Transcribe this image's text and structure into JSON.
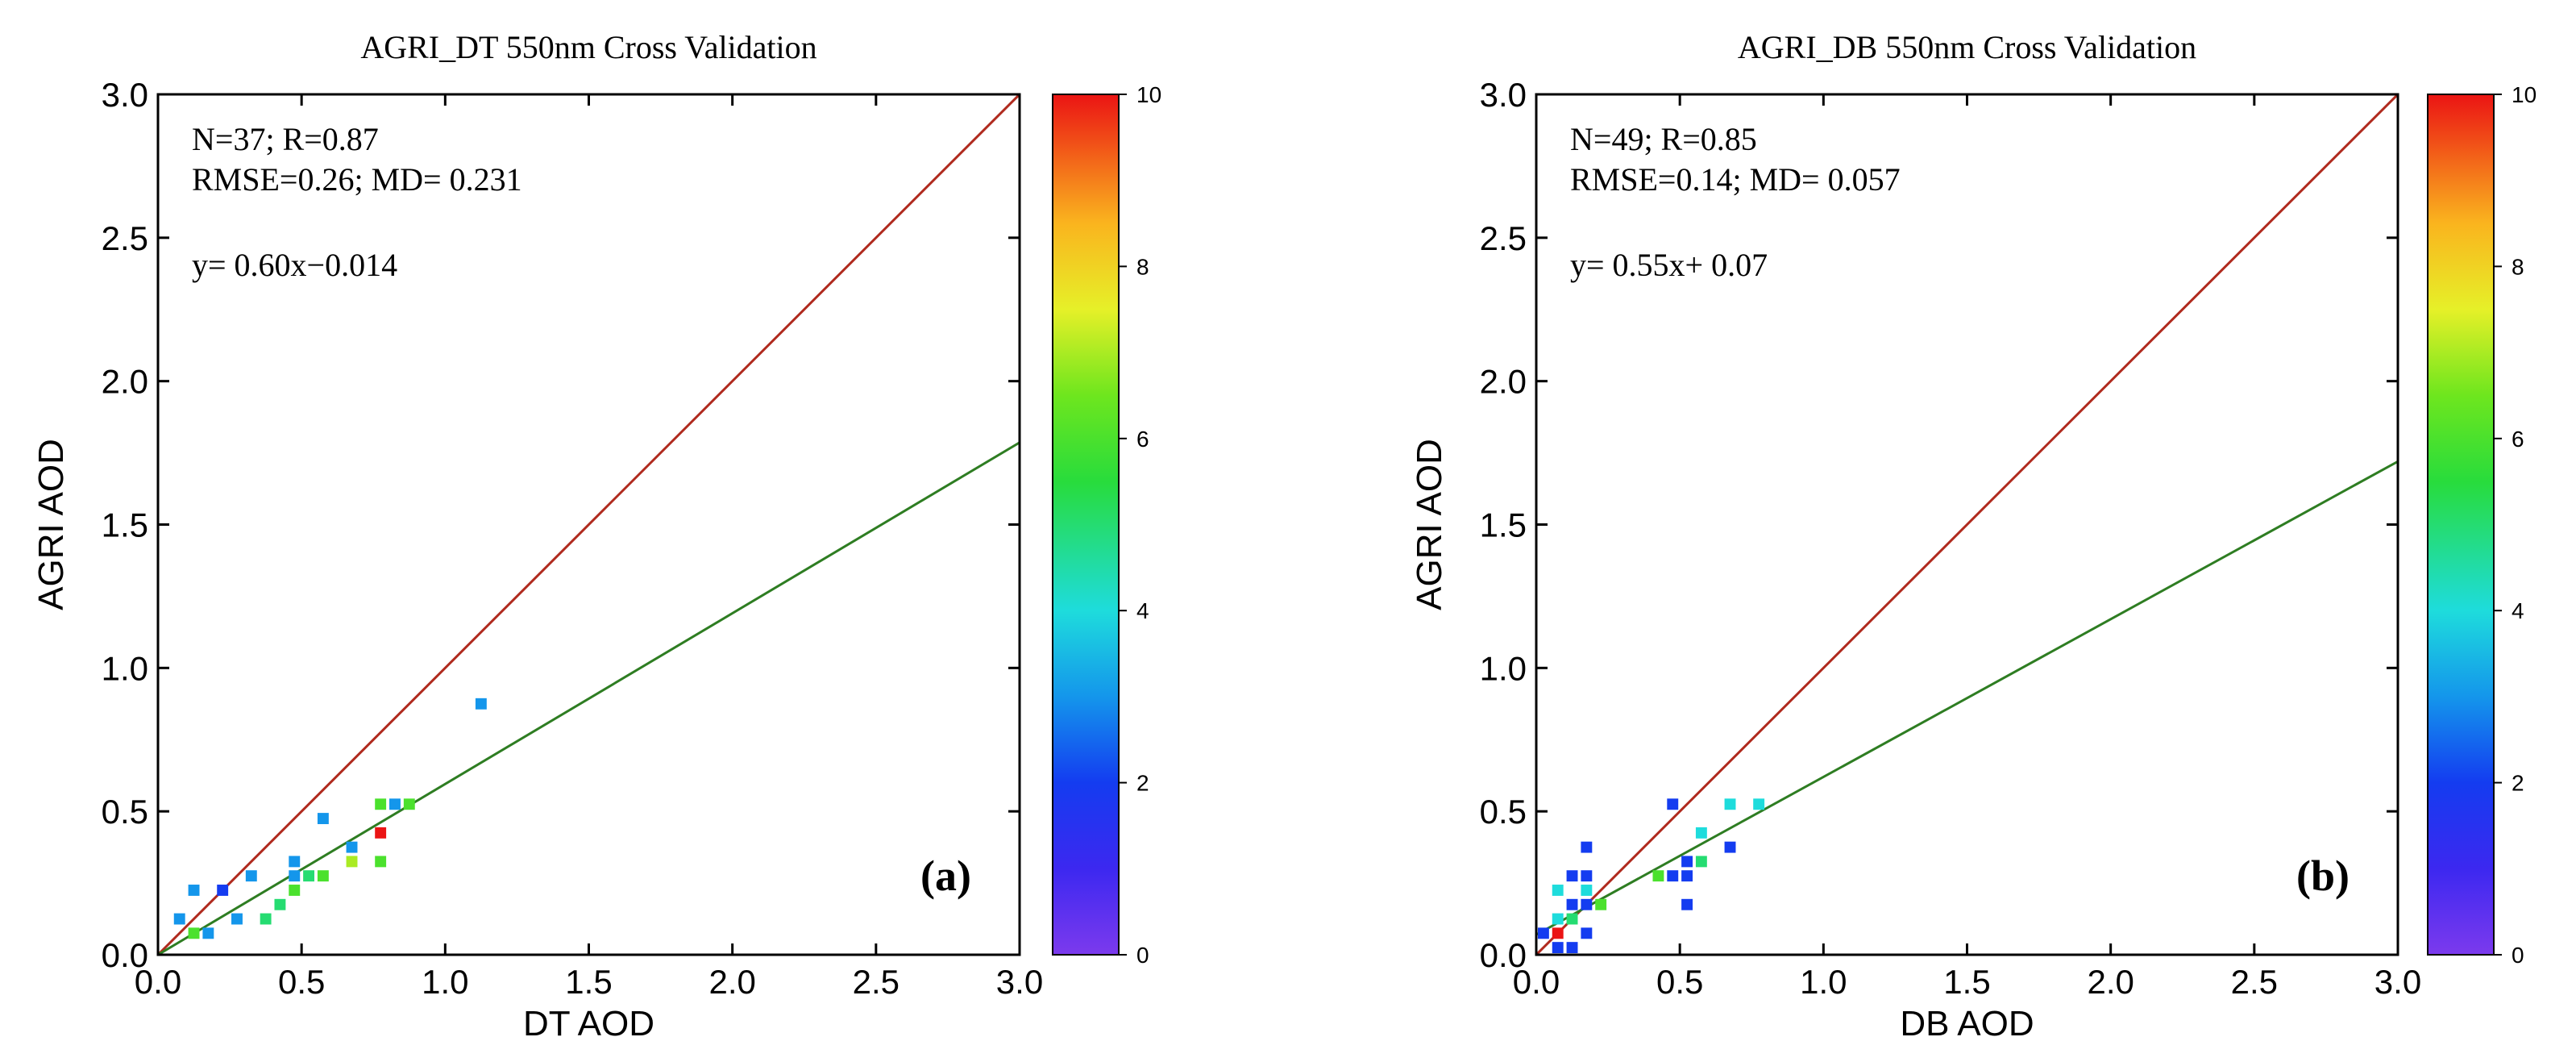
{
  "chart_data": [
    {
      "type": "scatter",
      "title": "AGRI_DT 550nm Cross Validation",
      "xlabel": "DT AOD",
      "ylabel": "AGRI AOD",
      "xlim": [
        0,
        3.0
      ],
      "ylim": [
        0,
        3.0
      ],
      "xticks": [
        "0.0",
        "0.5",
        "1.0",
        "1.5",
        "2.0",
        "2.5",
        "3.0"
      ],
      "yticks": [
        "0.0",
        "0.5",
        "1.0",
        "1.5",
        "2.0",
        "2.5",
        "3.0"
      ],
      "stats_line1": "N=37; R=0.87",
      "stats_line2": "RMSE=0.26; MD= 0.231",
      "fit_equation": "y= 0.60x−0.014",
      "fit": {
        "slope": 0.6,
        "intercept": -0.014
      },
      "panel_label": "(a)",
      "grid": false,
      "colorbar": {
        "min": 0,
        "max": 10,
        "ticks": [
          "0",
          "2",
          "4",
          "6",
          "8",
          "10"
        ]
      },
      "points": [
        {
          "x": 0.075,
          "y": 0.125,
          "count": 3
        },
        {
          "x": 0.125,
          "y": 0.225,
          "count": 3
        },
        {
          "x": 0.125,
          "y": 0.075,
          "count": 6
        },
        {
          "x": 0.175,
          "y": 0.075,
          "count": 3
        },
        {
          "x": 0.225,
          "y": 0.225,
          "count": 2
        },
        {
          "x": 0.275,
          "y": 0.125,
          "count": 3
        },
        {
          "x": 0.325,
          "y": 0.275,
          "count": 3
        },
        {
          "x": 0.375,
          "y": 0.125,
          "count": 5
        },
        {
          "x": 0.425,
          "y": 0.175,
          "count": 5
        },
        {
          "x": 0.475,
          "y": 0.225,
          "count": 6
        },
        {
          "x": 0.475,
          "y": 0.275,
          "count": 3
        },
        {
          "x": 0.475,
          "y": 0.325,
          "count": 3
        },
        {
          "x": 0.525,
          "y": 0.275,
          "count": 5
        },
        {
          "x": 0.575,
          "y": 0.275,
          "count": 6
        },
        {
          "x": 0.575,
          "y": 0.475,
          "count": 3
        },
        {
          "x": 0.675,
          "y": 0.325,
          "count": 7
        },
        {
          "x": 0.675,
          "y": 0.375,
          "count": 3
        },
        {
          "x": 0.775,
          "y": 0.325,
          "count": 6
        },
        {
          "x": 0.775,
          "y": 0.425,
          "count": 10
        },
        {
          "x": 0.775,
          "y": 0.525,
          "count": 6
        },
        {
          "x": 0.825,
          "y": 0.525,
          "count": 3
        },
        {
          "x": 0.875,
          "y": 0.525,
          "count": 6
        },
        {
          "x": 1.125,
          "y": 0.875,
          "count": 3
        }
      ]
    },
    {
      "type": "scatter",
      "title": "AGRI_DB 550nm Cross Validation",
      "xlabel": "DB AOD",
      "ylabel": "AGRI AOD",
      "xlim": [
        0,
        3.0
      ],
      "ylim": [
        0,
        3.0
      ],
      "xticks": [
        "0.0",
        "0.5",
        "1.0",
        "1.5",
        "2.0",
        "2.5",
        "3.0"
      ],
      "yticks": [
        "0.0",
        "0.5",
        "1.0",
        "1.5",
        "2.0",
        "2.5",
        "3.0"
      ],
      "stats_line1": "N=49; R=0.85",
      "stats_line2": "RMSE=0.14; MD= 0.057",
      "fit_equation": "y= 0.55x+ 0.07",
      "fit": {
        "slope": 0.55,
        "intercept": 0.07
      },
      "panel_label": "(b)",
      "grid": false,
      "colorbar": {
        "min": 0,
        "max": 10,
        "ticks": [
          "0",
          "2",
          "4",
          "6",
          "8",
          "10"
        ]
      },
      "points": [
        {
          "x": 0.025,
          "y": 0.075,
          "count": 2
        },
        {
          "x": 0.075,
          "y": 0.025,
          "count": 2
        },
        {
          "x": 0.075,
          "y": 0.075,
          "count": 10
        },
        {
          "x": 0.075,
          "y": 0.125,
          "count": 4
        },
        {
          "x": 0.075,
          "y": 0.225,
          "count": 4
        },
        {
          "x": 0.125,
          "y": 0.025,
          "count": 2
        },
        {
          "x": 0.125,
          "y": 0.125,
          "count": 5
        },
        {
          "x": 0.125,
          "y": 0.175,
          "count": 2
        },
        {
          "x": 0.125,
          "y": 0.275,
          "count": 2
        },
        {
          "x": 0.175,
          "y": 0.075,
          "count": 2
        },
        {
          "x": 0.175,
          "y": 0.175,
          "count": 2
        },
        {
          "x": 0.175,
          "y": 0.225,
          "count": 4
        },
        {
          "x": 0.175,
          "y": 0.275,
          "count": 2
        },
        {
          "x": 0.175,
          "y": 0.375,
          "count": 2
        },
        {
          "x": 0.225,
          "y": 0.175,
          "count": 6
        },
        {
          "x": 0.425,
          "y": 0.275,
          "count": 6
        },
        {
          "x": 0.475,
          "y": 0.275,
          "count": 2
        },
        {
          "x": 0.475,
          "y": 0.525,
          "count": 2
        },
        {
          "x": 0.525,
          "y": 0.175,
          "count": 2
        },
        {
          "x": 0.525,
          "y": 0.275,
          "count": 2
        },
        {
          "x": 0.525,
          "y": 0.325,
          "count": 2
        },
        {
          "x": 0.575,
          "y": 0.325,
          "count": 5
        },
        {
          "x": 0.575,
          "y": 0.425,
          "count": 4
        },
        {
          "x": 0.675,
          "y": 0.375,
          "count": 2
        },
        {
          "x": 0.675,
          "y": 0.525,
          "count": 4
        },
        {
          "x": 0.775,
          "y": 0.525,
          "count": 4
        }
      ]
    }
  ]
}
